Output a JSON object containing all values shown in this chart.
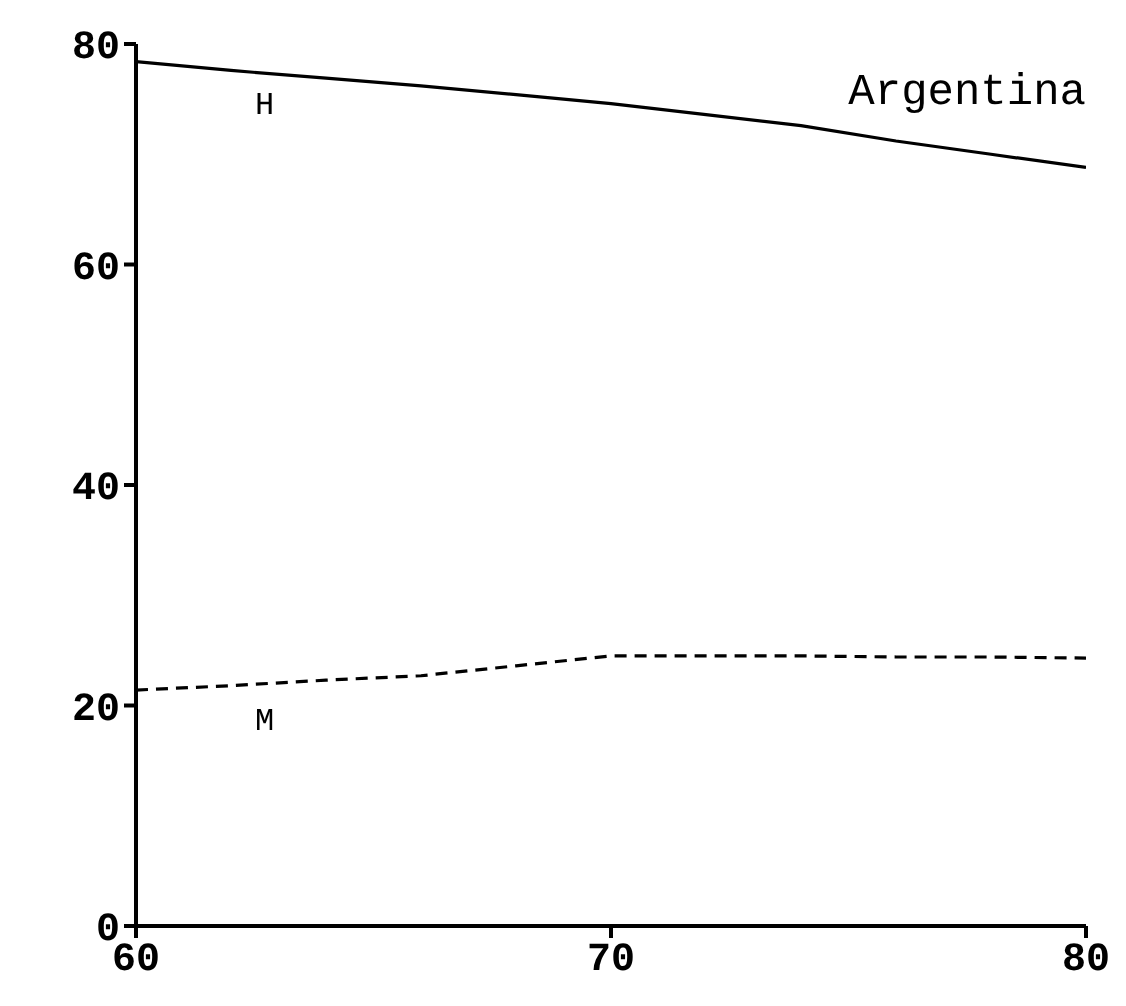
{
  "chart_data": {
    "type": "line",
    "title": "Argentina",
    "x": [
      60,
      62,
      64,
      66,
      68,
      70,
      72,
      74,
      76,
      78,
      80
    ],
    "series": [
      {
        "name": "H",
        "color": "#000000",
        "line_style": "solid",
        "values": [
          78.4,
          77.6,
          76.9,
          76.2,
          75.4,
          74.6,
          73.6,
          72.6,
          71.2,
          70.0,
          68.8
        ]
      },
      {
        "name": "M",
        "color": "#000000",
        "line_style": "dashed",
        "values": [
          21.4,
          21.8,
          22.3,
          22.7,
          23.6,
          24.5,
          24.5,
          24.5,
          24.4,
          24.4,
          24.3
        ]
      }
    ],
    "xlim": [
      60,
      80
    ],
    "xticks": [
      60,
      70,
      80
    ],
    "ylim": [
      0,
      80
    ],
    "yticks": [
      0,
      20,
      40,
      60,
      80
    ],
    "grid": false,
    "legend": false,
    "marker": "none"
  }
}
